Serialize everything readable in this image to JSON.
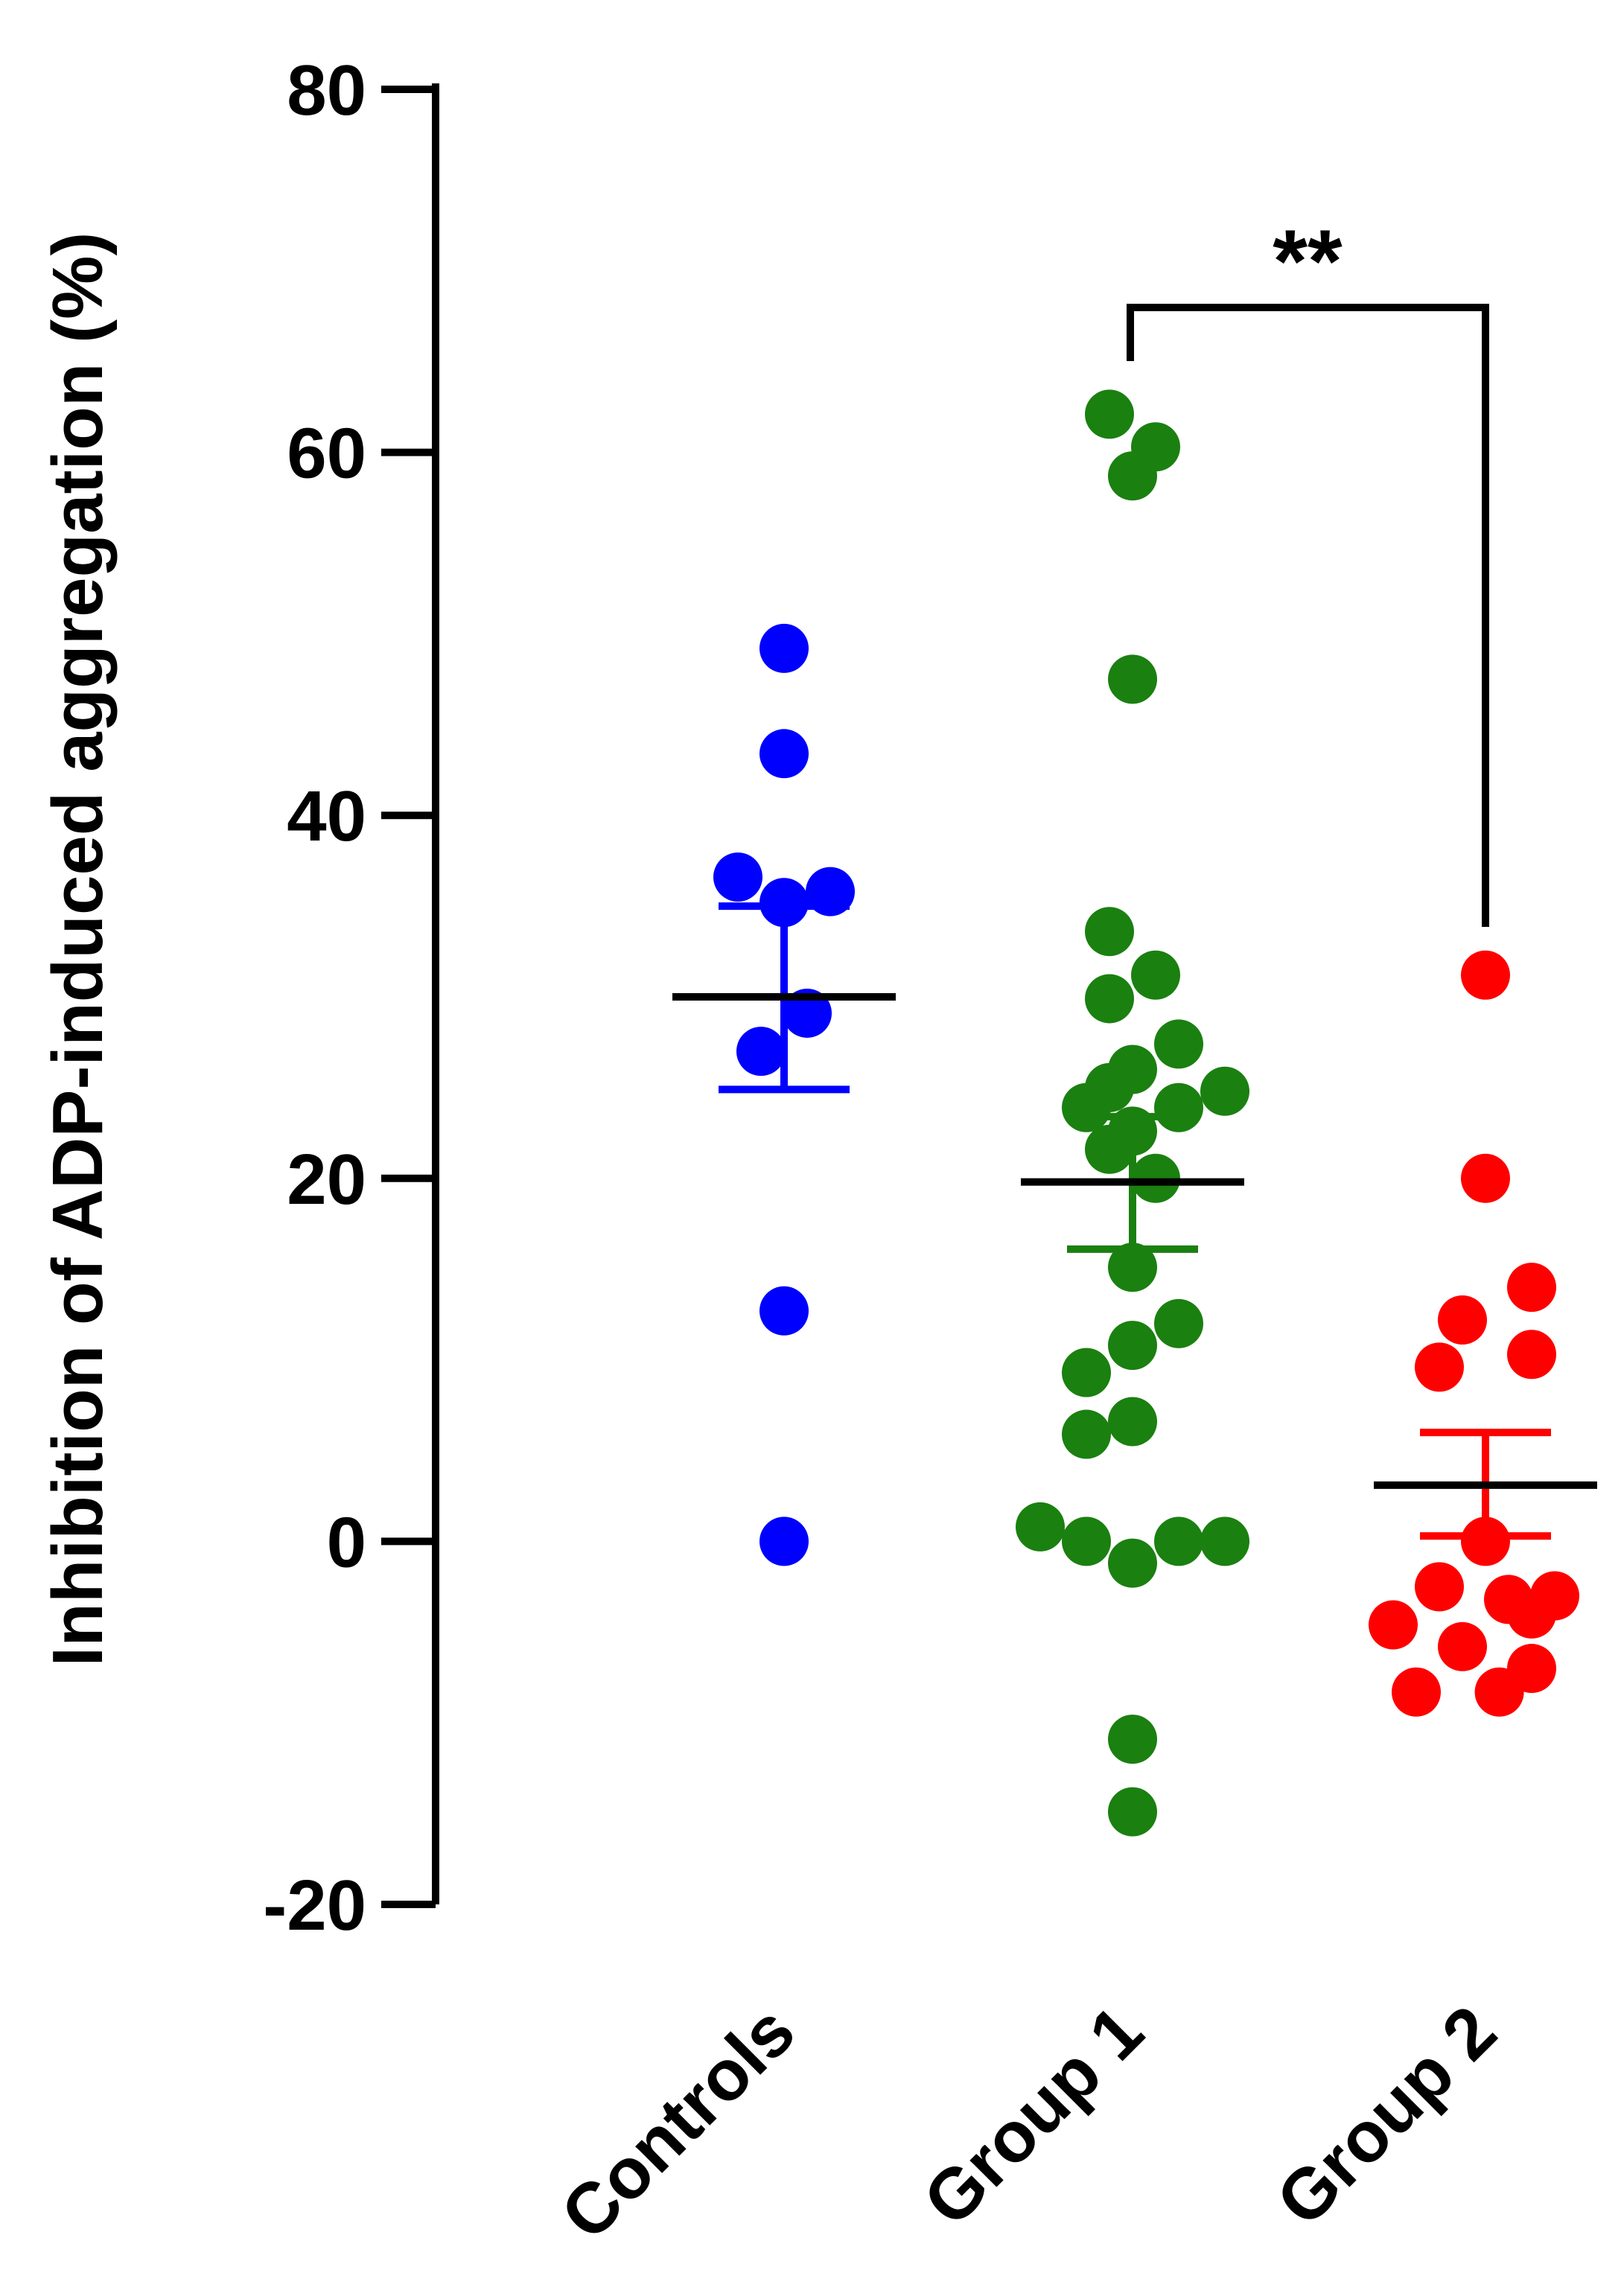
{
  "chart_data": {
    "type": "scatter",
    "ylabel": "Inhibition of ADP-induced aggregation (%)",
    "ylim": [
      -20,
      80
    ],
    "yticks": [
      "-20",
      "0",
      "20",
      "40",
      "60",
      "80"
    ],
    "categories": [
      "Controls",
      "Group 1",
      "Group 2"
    ],
    "series": [
      {
        "color": "#0000ff",
        "mean": 30.0,
        "sem": [
          24.9,
          35.0
        ],
        "points": [
          {
            "offset": 0,
            "y": 49.2
          },
          {
            "offset": 0,
            "y": 43.4
          },
          {
            "offset": -1,
            "y": 36.6
          },
          {
            "offset": 1,
            "y": 35.8
          },
          {
            "offset": 0,
            "y": 35.2
          },
          {
            "offset": 0.5,
            "y": 29.1
          },
          {
            "offset": -0.5,
            "y": 27.0
          },
          {
            "offset": 0,
            "y": 12.7
          },
          {
            "offset": 0,
            "y": 0.0
          }
        ]
      },
      {
        "color": "#1a8010",
        "mean": 19.8,
        "sem": [
          16.1,
          23.4
        ],
        "points": [
          {
            "offset": -0.5,
            "y": 62.1
          },
          {
            "offset": 0.5,
            "y": 60.3
          },
          {
            "offset": 0,
            "y": 58.7
          },
          {
            "offset": 0,
            "y": 47.5
          },
          {
            "offset": -0.5,
            "y": 33.6
          },
          {
            "offset": 0.5,
            "y": 31.2
          },
          {
            "offset": -0.5,
            "y": 29.9
          },
          {
            "offset": 1,
            "y": 27.4
          },
          {
            "offset": 0,
            "y": 26.0
          },
          {
            "offset": -0.5,
            "y": 25.0
          },
          {
            "offset": 2,
            "y": 24.8
          },
          {
            "offset": -1,
            "y": 23.9
          },
          {
            "offset": 1,
            "y": 23.9
          },
          {
            "offset": 0,
            "y": 22.6
          },
          {
            "offset": -0.5,
            "y": 21.6
          },
          {
            "offset": 0.5,
            "y": 20.0
          },
          {
            "offset": 0,
            "y": 15.1
          },
          {
            "offset": 1,
            "y": 12.0
          },
          {
            "offset": 0,
            "y": 10.8
          },
          {
            "offset": -1,
            "y": 9.3
          },
          {
            "offset": 0,
            "y": 6.6
          },
          {
            "offset": -1,
            "y": 5.9
          },
          {
            "offset": -2,
            "y": 0.8
          },
          {
            "offset": -1,
            "y": 0.0
          },
          {
            "offset": 1,
            "y": 0.0
          },
          {
            "offset": 2,
            "y": 0.0
          },
          {
            "offset": 0,
            "y": -1.2
          },
          {
            "offset": 0,
            "y": -10.9
          },
          {
            "offset": 0,
            "y": -14.9
          }
        ]
      },
      {
        "color": "#ff0000",
        "mean": 3.1,
        "sem": [
          0.3,
          6.0
        ],
        "points": [
          {
            "offset": 0,
            "y": 31.2
          },
          {
            "offset": 0,
            "y": 20.0
          },
          {
            "offset": 1,
            "y": 14.0
          },
          {
            "offset": -0.5,
            "y": 12.2
          },
          {
            "offset": 1,
            "y": 10.3
          },
          {
            "offset": -1,
            "y": 9.6
          },
          {
            "offset": 0,
            "y": 0.0
          },
          {
            "offset": -1,
            "y": -2.5
          },
          {
            "offset": 0.5,
            "y": -3.2
          },
          {
            "offset": 1.5,
            "y": -3.0
          },
          {
            "offset": -2,
            "y": -4.6
          },
          {
            "offset": 1,
            "y": -4.0
          },
          {
            "offset": -0.5,
            "y": -5.8
          },
          {
            "offset": 1,
            "y": -7.0
          },
          {
            "offset": -1.5,
            "y": -8.3
          },
          {
            "offset": 0.3,
            "y": -8.3
          }
        ]
      }
    ],
    "annotations": [
      {
        "text": "**",
        "from": "Group 1",
        "to": "Group 2"
      }
    ]
  }
}
